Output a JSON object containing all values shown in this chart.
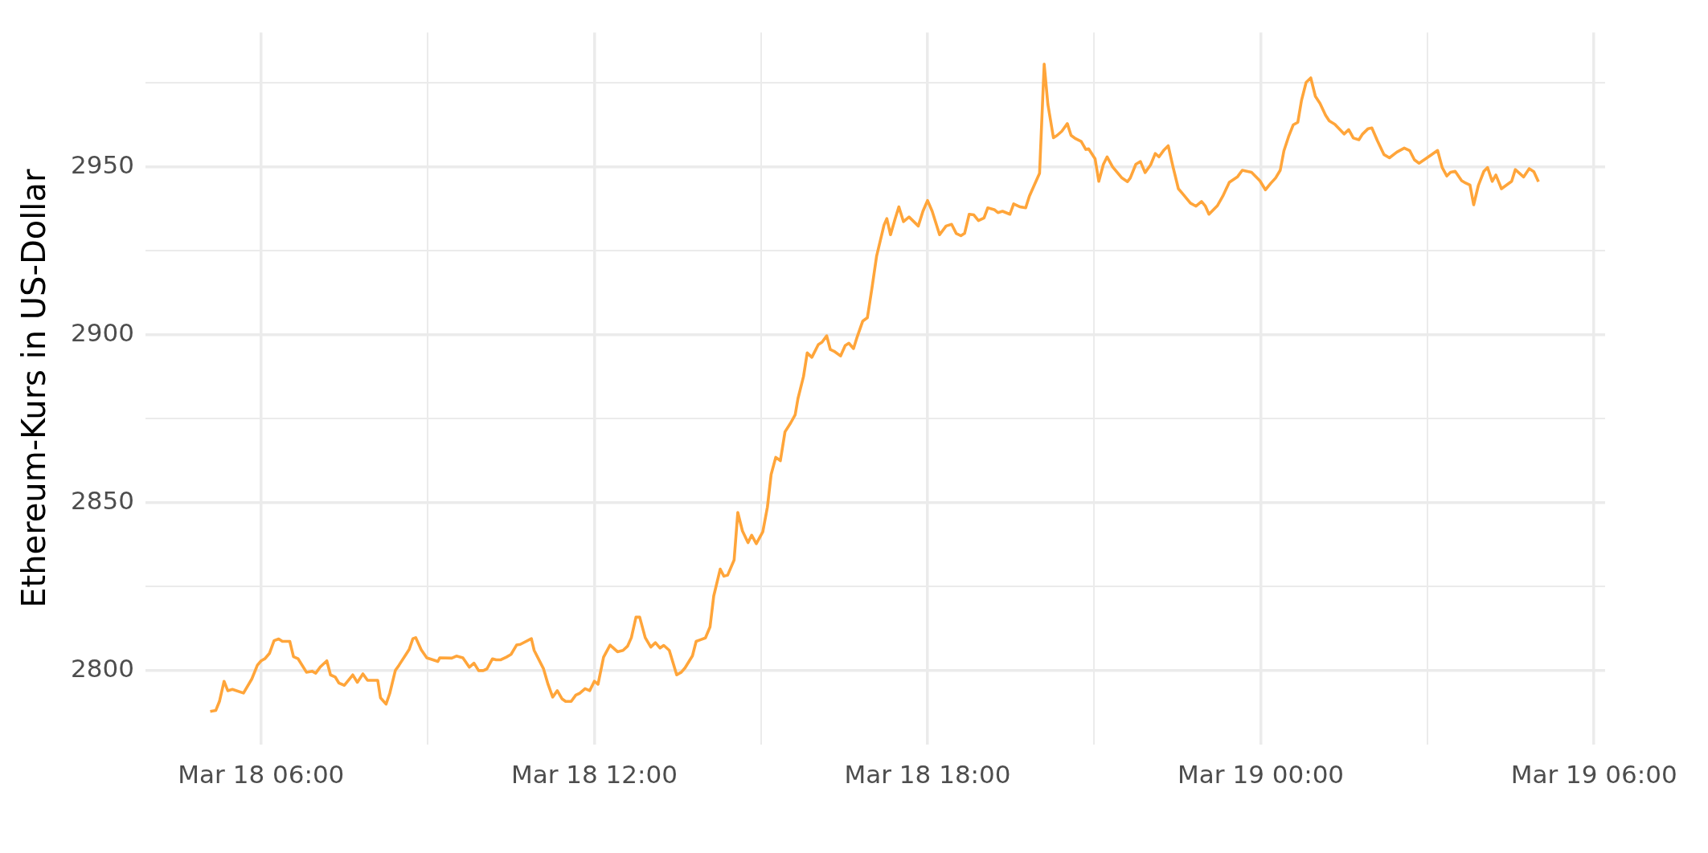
{
  "chart_data": {
    "type": "line",
    "ylabel": "Ethereum-Kurs in US-Dollar",
    "color": "#ffa53a",
    "grid": true,
    "legend": false,
    "marker": "none",
    "line_style": "solid",
    "x": [
      "--03-18T05:05",
      "--03-18T05:11",
      "--03-18T05:15",
      "--03-18T05:20",
      "--03-18T05:24",
      "--03-18T05:29",
      "--03-18T05:41",
      "--03-18T05:50",
      "--03-18T05:56",
      "--03-18T06:00",
      "--03-18T06:04",
      "--03-18T06:09",
      "--03-18T06:14",
      "--03-18T06:19",
      "--03-18T06:23",
      "--03-18T06:31",
      "--03-18T06:35",
      "--03-18T06:40",
      "--03-18T06:49",
      "--03-18T06:55",
      "--03-18T06:59",
      "--03-18T07:04",
      "--03-18T07:11",
      "--03-18T07:15",
      "--03-18T07:20",
      "--03-18T07:24",
      "--03-18T07:30",
      "--03-18T07:39",
      "--03-18T07:44",
      "--03-18T07:50",
      "--03-18T07:55",
      "--03-18T08:06",
      "--03-18T08:09",
      "--03-18T08:15",
      "--03-18T08:19",
      "--03-18T08:25",
      "--03-18T08:29",
      "--03-18T08:40",
      "--03-18T08:44",
      "--03-18T08:47",
      "--03-18T08:53",
      "--03-18T08:59",
      "--03-18T09:11",
      "--03-18T09:13",
      "--03-18T09:26",
      "--03-18T09:31",
      "--03-18T09:38",
      "--03-18T09:45",
      "--03-18T09:50",
      "--03-18T09:55",
      "--03-18T10:00",
      "--03-18T10:04",
      "--03-18T10:10",
      "--03-18T10:14",
      "--03-18T10:19",
      "--03-18T10:25",
      "--03-18T10:30",
      "--03-18T10:36",
      "--03-18T10:40",
      "--03-18T10:52",
      "--03-18T10:55",
      "--03-18T11:05",
      "--03-18T11:10",
      "--03-18T11:15",
      "--03-18T11:20",
      "--03-18T11:25",
      "--03-18T11:29",
      "--03-18T11:35",
      "--03-18T11:40",
      "--03-18T11:44",
      "--03-18T11:50",
      "--03-18T11:55",
      "--03-18T12:00",
      "--03-18T12:04",
      "--03-18T12:10",
      "--03-18T12:17",
      "--03-18T12:25",
      "--03-18T12:31",
      "--03-18T12:36",
      "--03-18T12:40",
      "--03-18T12:45",
      "--03-18T12:49",
      "--03-18T12:55",
      "--03-18T13:01",
      "--03-18T13:06",
      "--03-18T13:11",
      "--03-18T13:15",
      "--03-18T13:21",
      "--03-18T13:29",
      "--03-18T13:34",
      "--03-18T13:38",
      "--03-18T13:46",
      "--03-18T13:50",
      "--03-18T13:55",
      "--03-18T14:00",
      "--03-18T14:05",
      "--03-18T14:09",
      "--03-18T14:16",
      "--03-18T14:20",
      "--03-18T14:24",
      "--03-18T14:31",
      "--03-18T14:35",
      "--03-18T14:40",
      "--03-18T14:46",
      "--03-18T14:50",
      "--03-18T14:55",
      "--03-18T15:02",
      "--03-18T15:07",
      "--03-18T15:11",
      "--03-18T15:16",
      "--03-18T15:21",
      "--03-18T15:26",
      "--03-18T15:32",
      "--03-18T15:37",
      "--03-18T15:40",
      "--03-18T15:46",
      "--03-18T15:50",
      "--03-18T15:55",
      "--03-18T16:02",
      "--03-18T16:06",
      "--03-18T16:11",
      "--03-18T16:15",
      "--03-18T16:19",
      "--03-18T16:26",
      "--03-18T16:31",
      "--03-18T16:35",
      "--03-18T16:40",
      "--03-18T16:44",
      "--03-18T16:50",
      "--03-18T16:55",
      "--03-18T17:00",
      "--03-18T17:05",
      "--03-18T17:13",
      "--03-18T17:16",
      "--03-18T17:20",
      "--03-18T17:25",
      "--03-18T17:29",
      "--03-18T17:34",
      "--03-18T17:40",
      "--03-18T17:50",
      "--03-18T17:55",
      "--03-18T18:00",
      "--03-18T18:05",
      "--03-18T18:13",
      "--03-18T18:20",
      "--03-18T18:26",
      "--03-18T18:31",
      "--03-18T18:36",
      "--03-18T18:40",
      "--03-18T18:45",
      "--03-18T18:50",
      "--03-18T18:55",
      "--03-18T19:01",
      "--03-18T19:05",
      "--03-18T19:12",
      "--03-18T19:16",
      "--03-18T19:21",
      "--03-18T19:29",
      "--03-18T19:33",
      "--03-18T19:40",
      "--03-18T19:46",
      "--03-18T19:50",
      "--03-18T19:55",
      "--03-18T20:01",
      "--03-18T20:06",
      "--03-18T20:10",
      "--03-18T20:16",
      "--03-18T20:20",
      "--03-18T20:25",
      "--03-18T20:31",
      "--03-18T20:35",
      "--03-18T20:40",
      "--03-18T20:46",
      "--03-18T20:51",
      "--03-18T20:54",
      "--03-18T21:01",
      "--03-18T21:05",
      "--03-18T21:10",
      "--03-18T21:14",
      "--03-18T21:20",
      "--03-18T21:30",
      "--03-18T21:36",
      "--03-18T21:39",
      "--03-18T21:45",
      "--03-18T21:50",
      "--03-18T21:55",
      "--03-18T22:01",
      "--03-18T22:06",
      "--03-18T22:10",
      "--03-18T22:15",
      "--03-18T22:20",
      "--03-18T22:25",
      "--03-18T22:31",
      "--03-18T22:35",
      "--03-18T22:44",
      "--03-18T22:50",
      "--03-18T22:56",
      "--03-18T23:00",
      "--03-18T23:04",
      "--03-18T23:13",
      "--03-18T23:19",
      "--03-18T23:26",
      "--03-18T23:35",
      "--03-18T23:40",
      "--03-18T23:50",
      "--03-18T23:59",
      "--03-19T00:05",
      "--03-19T00:11",
      "--03-19T00:16",
      "--03-19T00:21",
      "--03-19T00:25",
      "--03-19T00:30",
      "--03-19T00:35",
      "--03-19T00:40",
      "--03-19T00:44",
      "--03-19T00:49",
      "--03-19T00:54",
      "--03-19T00:59",
      "--03-19T01:04",
      "--03-19T01:10",
      "--03-19T01:14",
      "--03-19T01:20",
      "--03-19T01:30",
      "--03-19T01:35",
      "--03-19T01:40",
      "--03-19T01:46",
      "--03-19T01:50",
      "--03-19T01:56",
      "--03-19T02:00",
      "--03-19T02:06",
      "--03-19T02:13",
      "--03-19T02:19",
      "--03-19T02:27",
      "--03-19T02:35",
      "--03-19T02:41",
      "--03-19T02:46",
      "--03-19T02:51",
      "--03-19T02:58",
      "--03-19T03:11",
      "--03-19T03:16",
      "--03-19T03:21",
      "--03-19T03:25",
      "--03-19T03:30",
      "--03-19T03:37",
      "--03-19T03:40",
      "--03-19T03:46",
      "--03-19T03:50",
      "--03-19T03:55",
      "--03-19T04:01",
      "--03-19T04:05",
      "--03-19T04:10",
      "--03-19T04:14",
      "--03-19T04:20",
      "--03-19T04:31",
      "--03-19T04:35",
      "--03-19T04:44",
      "--03-19T04:50",
      "--03-19T04:55",
      "--03-19T05:00"
    ],
    "values": [
      2787.8,
      2788.1,
      2790.8,
      2796.8,
      2794.0,
      2794.4,
      2793.3,
      2797.5,
      2801.6,
      2802.9,
      2803.5,
      2805.1,
      2808.9,
      2809.4,
      2808.7,
      2808.7,
      2804.1,
      2803.5,
      2799.5,
      2799.8,
      2799.2,
      2801.1,
      2802.9,
      2798.7,
      2798.1,
      2796.3,
      2795.6,
      2798.7,
      2796.5,
      2799.0,
      2797.1,
      2797.1,
      2791.9,
      2790.0,
      2793.2,
      2800.0,
      2801.6,
      2806.3,
      2809.5,
      2809.8,
      2806.2,
      2803.8,
      2802.7,
      2803.8,
      2803.7,
      2804.3,
      2803.8,
      2801.0,
      2802.2,
      2800.0,
      2800.0,
      2800.5,
      2803.5,
      2803.2,
      2803.2,
      2804.0,
      2804.8,
      2807.6,
      2807.8,
      2809.5,
      2806.0,
      2800.6,
      2795.9,
      2792.1,
      2794.0,
      2791.6,
      2790.8,
      2790.8,
      2792.7,
      2793.2,
      2794.6,
      2794.0,
      2796.8,
      2795.9,
      2804.0,
      2807.6,
      2805.6,
      2806.0,
      2807.3,
      2809.8,
      2815.9,
      2815.9,
      2809.8,
      2807.0,
      2808.3,
      2806.7,
      2807.5,
      2806.0,
      2798.7,
      2799.5,
      2800.8,
      2804.4,
      2808.7,
      2809.2,
      2809.7,
      2813.0,
      2822.2,
      2830.2,
      2828.1,
      2828.4,
      2832.9,
      2847.1,
      2841.6,
      2838.1,
      2840.3,
      2837.8,
      2841.3,
      2848.7,
      2858.4,
      2863.5,
      2862.5,
      2871.1,
      2873.7,
      2876.2,
      2881.0,
      2887.6,
      2894.6,
      2893.3,
      2897.1,
      2897.8,
      2899.7,
      2895.6,
      2895.1,
      2893.7,
      2896.8,
      2897.5,
      2895.9,
      2899.4,
      2904.1,
      2905.1,
      2914.0,
      2923.5,
      2932.7,
      2934.6,
      2929.8,
      2934.6,
      2938.1,
      2933.7,
      2935.1,
      2932.4,
      2936.8,
      2940.0,
      2936.8,
      2929.8,
      2932.4,
      2932.9,
      2930.2,
      2929.5,
      2930.2,
      2935.9,
      2935.7,
      2934.0,
      2934.8,
      2937.8,
      2937.3,
      2936.4,
      2936.8,
      2935.9,
      2939.0,
      2938.1,
      2937.8,
      2941.3,
      2944.4,
      2948.1,
      2980.6,
      2968.6,
      2958.7,
      2959.4,
      2960.6,
      2962.9,
      2959.4,
      2958.4,
      2957.6,
      2955.2,
      2955.4,
      2952.4,
      2945.7,
      2950.8,
      2953.0,
      2950.0,
      2946.7,
      2945.6,
      2946.7,
      2950.8,
      2951.6,
      2948.3,
      2950.6,
      2954.0,
      2953.0,
      2954.9,
      2956.3,
      2950.2,
      2943.5,
      2942.2,
      2939.2,
      2938.3,
      2939.7,
      2938.4,
      2935.9,
      2938.4,
      2941.3,
      2945.4,
      2947.1,
      2949.0,
      2948.4,
      2945.9,
      2943.2,
      2945.2,
      2946.7,
      2949.0,
      2954.8,
      2959.0,
      2962.5,
      2963.3,
      2969.8,
      2975.2,
      2976.5,
      2971.0,
      2968.9,
      2965.4,
      2963.7,
      2962.7,
      2959.8,
      2961.1,
      2958.6,
      2958.1,
      2959.8,
      2961.4,
      2961.6,
      2957.8,
      2953.7,
      2952.7,
      2954.4,
      2955.6,
      2954.8,
      2952.1,
      2951.1,
      2952.4,
      2954.9,
      2949.8,
      2947.3,
      2948.4,
      2948.7,
      2945.9,
      2945.4,
      2944.6,
      2938.7,
      2944.4,
      2948.7,
      2949.8,
      2945.7,
      2947.6,
      2943.5,
      2945.7,
      2949.2,
      2947.0,
      2949.5,
      2948.6,
      2945.6
    ],
    "xlim": [
      "--03-18T03:55",
      "--03-19T06:12"
    ],
    "xticks": [
      {
        "value": "--03-18T06:00",
        "label": "Mar 18 06:00"
      },
      {
        "value": "--03-18T09:00",
        "label": null
      },
      {
        "value": "--03-18T12:00",
        "label": "Mar 18 12:00"
      },
      {
        "value": "--03-18T15:00",
        "label": null
      },
      {
        "value": "--03-18T18:00",
        "label": "Mar 18 18:00"
      },
      {
        "value": "--03-18T21:00",
        "label": null
      },
      {
        "value": "--03-19T00:00",
        "label": "Mar 19 00:00"
      },
      {
        "value": "--03-19T03:00",
        "label": null
      },
      {
        "value": "--03-19T06:00",
        "label": "Mar 19 06:00"
      }
    ],
    "ylim": [
      2778,
      2990
    ],
    "yticks": [
      2800,
      {
        "value": 2825,
        "label": null
      },
      2850,
      {
        "value": 2875,
        "label": null
      },
      2900,
      {
        "value": 2925,
        "label": null
      },
      2950,
      {
        "value": 2975,
        "label": null
      }
    ]
  }
}
